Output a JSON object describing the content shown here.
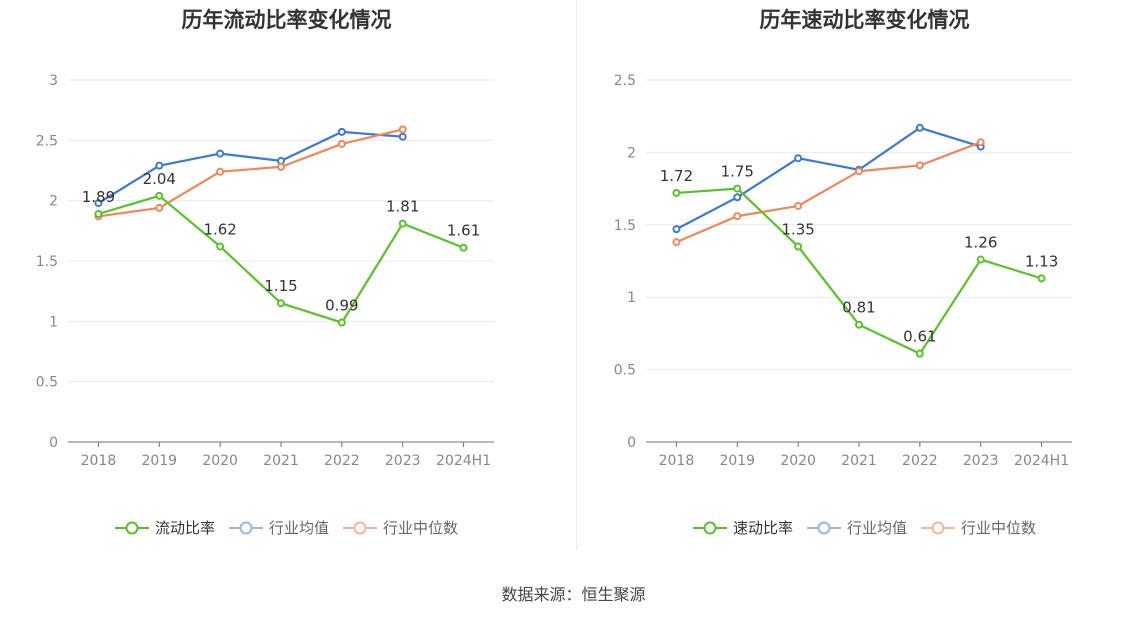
{
  "source_text": "数据来源：恒生聚源",
  "chart_data": [
    {
      "type": "line",
      "title": "历年流动比率变化情况",
      "categories": [
        "2018",
        "2019",
        "2020",
        "2021",
        "2022",
        "2023",
        "2024H1"
      ],
      "ylim": [
        0,
        3
      ],
      "yticks": [
        "0",
        "0.5",
        "1",
        "1.5",
        "2",
        "2.5",
        "3"
      ],
      "grid": true,
      "legend_position": "bottom",
      "series": [
        {
          "name": "流动比率",
          "color": "#5ac229",
          "values": [
            1.89,
            2.04,
            1.62,
            1.15,
            0.99,
            1.81,
            1.61
          ],
          "labels": [
            "1.89",
            "2.04",
            "1.62",
            "1.15",
            "0.99",
            "1.81",
            "1.61"
          ]
        },
        {
          "name": "行业均值",
          "color": "#3c78d8",
          "values": [
            1.98,
            2.29,
            2.39,
            2.33,
            2.57,
            2.53,
            null
          ]
        },
        {
          "name": "行业中位数",
          "color": "#f0875a",
          "values": [
            1.87,
            1.94,
            2.24,
            2.28,
            2.47,
            2.59,
            null
          ]
        }
      ]
    },
    {
      "type": "line",
      "title": "历年速动比率变化情况",
      "categories": [
        "2018",
        "2019",
        "2020",
        "2021",
        "2022",
        "2023",
        "2024H1"
      ],
      "ylim": [
        0,
        2.5
      ],
      "yticks": [
        "0",
        "0.5",
        "1",
        "1.5",
        "2",
        "2.5"
      ],
      "grid": true,
      "legend_position": "bottom",
      "series": [
        {
          "name": "速动比率",
          "color": "#5ac229",
          "values": [
            1.72,
            1.75,
            1.35,
            0.81,
            0.61,
            1.26,
            1.13
          ],
          "labels": [
            "1.72",
            "1.75",
            "1.35",
            "0.81",
            "0.61",
            "1.26",
            "1.13"
          ]
        },
        {
          "name": "行业均值",
          "color": "#3c78d8",
          "values": [
            1.47,
            1.69,
            1.96,
            1.88,
            2.17,
            2.04,
            null
          ]
        },
        {
          "name": "行业中位数",
          "color": "#f0875a",
          "values": [
            1.38,
            1.56,
            1.63,
            1.87,
            1.91,
            2.07,
            null
          ]
        }
      ]
    }
  ]
}
